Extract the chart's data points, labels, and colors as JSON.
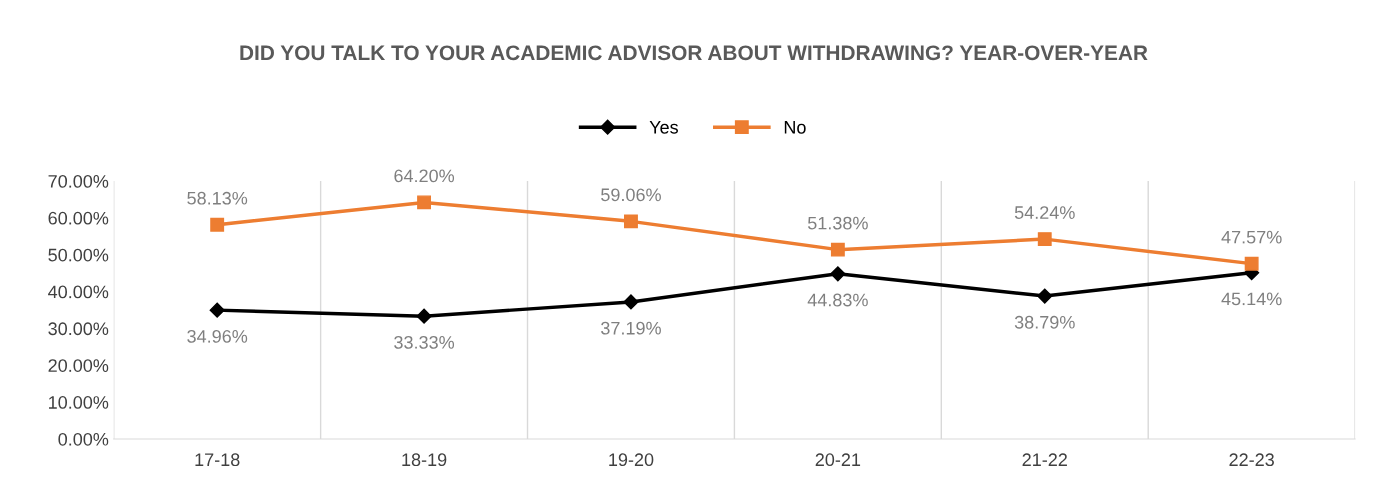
{
  "chart_data": {
    "type": "line",
    "title": "DID YOU TALK TO YOUR ACADEMIC ADVISOR ABOUT WITHDRAWING? YEAR-OVER-YEAR",
    "categories": [
      "17-18",
      "18-19",
      "19-20",
      "20-21",
      "21-22",
      "22-23"
    ],
    "series": [
      {
        "name": "Yes",
        "color": "#000000",
        "marker": "diamond",
        "values": [
          34.96,
          33.33,
          37.19,
          44.83,
          38.79,
          45.14
        ],
        "value_labels": [
          "34.96%",
          "33.33%",
          "37.19%",
          "44.83%",
          "38.79%",
          "45.14%"
        ]
      },
      {
        "name": "No",
        "color": "#ed7d31",
        "marker": "square",
        "values": [
          58.13,
          64.2,
          59.06,
          51.38,
          54.24,
          47.57
        ],
        "value_labels": [
          "58.13%",
          "64.20%",
          "59.06%",
          "51.38%",
          "54.24%",
          "47.57%"
        ]
      }
    ],
    "ylim": [
      0,
      70
    ],
    "yticks": [
      {
        "value": 0,
        "label": "0.00%"
      },
      {
        "value": 10,
        "label": "10.00%"
      },
      {
        "value": 20,
        "label": "20.00%"
      },
      {
        "value": 30,
        "label": "30.00%"
      },
      {
        "value": 40,
        "label": "40.00%"
      },
      {
        "value": 50,
        "label": "50.00%"
      },
      {
        "value": 60,
        "label": "60.00%"
      },
      {
        "value": 70,
        "label": "70.00%"
      }
    ],
    "grid": "x",
    "legend": "top",
    "line_style": "solid"
  }
}
